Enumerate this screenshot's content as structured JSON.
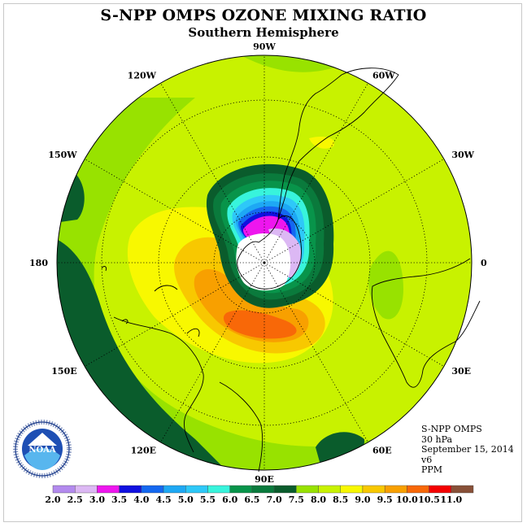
{
  "title": "S-NPP OMPS OZONE MIXING RATIO",
  "subtitle": "Southern Hemisphere",
  "map": {
    "projection": "south-polar-stereographic",
    "longitude_labels": [
      {
        "lon": 0,
        "text": "0"
      },
      {
        "lon": -30,
        "text": "30W"
      },
      {
        "lon": -60,
        "text": "60W"
      },
      {
        "lon": -90,
        "text": "90W"
      },
      {
        "lon": -120,
        "text": "120W"
      },
      {
        "lon": -150,
        "text": "150W"
      },
      {
        "lon": 180,
        "text": "180"
      },
      {
        "lon": 150,
        "text": "150E"
      },
      {
        "lon": 120,
        "text": "120E"
      },
      {
        "lon": 90,
        "text": "90E"
      },
      {
        "lon": 60,
        "text": "60E"
      },
      {
        "lon": 30,
        "text": "30E"
      }
    ]
  },
  "info": {
    "instrument": "S-NPP OMPS",
    "level": "30 hPa",
    "date": "September 15, 2014",
    "version": "v6",
    "units": "PPM"
  },
  "logo": {
    "text": "NOAA",
    "ring_text": "NATIONAL OCEANIC AND ATMOSPHERIC ADMINISTRATION · U.S. DEPARTMENT OF COMMERCE"
  },
  "legend": {
    "ticks": [
      "2.0",
      "2.5",
      "3.0",
      "3.5",
      "4.0",
      "4.5",
      "5.0",
      "5.5",
      "6.0",
      "6.5",
      "7.0",
      "7.5",
      "8.0",
      "8.5",
      "9.0",
      "9.5",
      "10.0",
      "10.5",
      "11.0"
    ],
    "colors": [
      "#b38aee",
      "#dcb8f4",
      "#ee16ee",
      "#1010e0",
      "#1468f0",
      "#1ea8f4",
      "#2ec8f8",
      "#38f4dc",
      "#08944a",
      "#0a7a3c",
      "#0a5c2c",
      "#98e200",
      "#c8f200",
      "#f8f800",
      "#f8c800",
      "#f8a000",
      "#f86808",
      "#f40000",
      "#885038"
    ]
  }
}
